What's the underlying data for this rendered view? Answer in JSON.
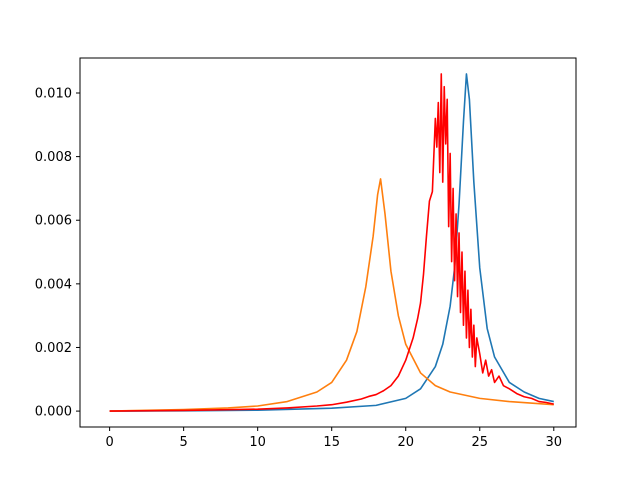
{
  "chart_data": {
    "type": "line",
    "title": "",
    "xlabel": "",
    "ylabel": "",
    "xlim": [
      -2,
      31.5
    ],
    "ylim": [
      -0.0005,
      0.0111
    ],
    "grid": false,
    "legend": "none",
    "x_ticks": [
      0,
      5,
      10,
      15,
      20,
      25,
      30
    ],
    "x_tick_labels": [
      "0",
      "5",
      "10",
      "15",
      "20",
      "25",
      "30"
    ],
    "y_ticks": [
      0.0,
      0.002,
      0.004,
      0.006,
      0.008,
      0.01
    ],
    "y_tick_labels": [
      "0.000",
      "0.002",
      "0.004",
      "0.006",
      "0.008",
      "0.010"
    ],
    "series": [
      {
        "color": "#1f77b4",
        "x": [
          0,
          5,
          10,
          15,
          18,
          20,
          21,
          22,
          22.5,
          23,
          23.3,
          23.6,
          23.9,
          24.1,
          24.3,
          24.6,
          25,
          25.5,
          26,
          27,
          28,
          29,
          30
        ],
        "y": [
          0.0,
          1e-05,
          3e-05,
          9e-05,
          0.00018,
          0.0004,
          0.0007,
          0.0014,
          0.0021,
          0.0033,
          0.0045,
          0.0065,
          0.0091,
          0.0106,
          0.0098,
          0.0072,
          0.0045,
          0.0026,
          0.0017,
          0.0009,
          0.0006,
          0.0004,
          0.0003
        ]
      },
      {
        "color": "#ff7f0e",
        "x": [
          0,
          5,
          8,
          10,
          12,
          14,
          15,
          16,
          16.7,
          17.3,
          17.8,
          18.1,
          18.3,
          18.6,
          19,
          19.5,
          20,
          21,
          22,
          23,
          25,
          27,
          30
        ],
        "y": [
          0.0,
          5e-05,
          0.0001,
          0.00016,
          0.0003,
          0.0006,
          0.0009,
          0.0016,
          0.0025,
          0.0039,
          0.0055,
          0.0068,
          0.0073,
          0.0062,
          0.0044,
          0.003,
          0.0021,
          0.0012,
          0.0008,
          0.0006,
          0.0004,
          0.0003,
          0.0002
        ]
      },
      {
        "color": "#ff0000",
        "x": [
          0,
          5,
          10,
          12,
          14,
          15,
          16,
          17,
          17.5,
          18,
          18.5,
          19,
          19.5,
          20,
          20.5,
          20.8,
          21,
          21.2,
          21.4,
          21.6,
          21.8,
          22.0,
          22.1,
          22.2,
          22.3,
          22.4,
          22.5,
          22.6,
          22.7,
          22.8,
          22.9,
          23.0,
          23.1,
          23.2,
          23.3,
          23.4,
          23.5,
          23.6,
          23.7,
          23.8,
          23.9,
          24.0,
          24.1,
          24.2,
          24.3,
          24.4,
          24.5,
          24.6,
          24.7,
          24.8,
          25.0,
          25.2,
          25.4,
          25.6,
          25.8,
          26.0,
          26.3,
          26.6,
          27.0,
          27.5,
          28.0,
          28.5,
          29.0,
          29.5,
          30.0
        ],
        "y": [
          0.0,
          2e-05,
          6e-05,
          0.0001,
          0.00016,
          0.0002,
          0.00028,
          0.00038,
          0.00046,
          0.00052,
          0.00064,
          0.0008,
          0.0011,
          0.0016,
          0.0023,
          0.0029,
          0.0034,
          0.0043,
          0.0055,
          0.0066,
          0.0069,
          0.0092,
          0.0083,
          0.0097,
          0.0075,
          0.0106,
          0.0072,
          0.0102,
          0.0084,
          0.0098,
          0.0058,
          0.0081,
          0.0047,
          0.007,
          0.0041,
          0.0062,
          0.0036,
          0.0056,
          0.0031,
          0.005,
          0.0027,
          0.0044,
          0.0023,
          0.0038,
          0.002,
          0.0032,
          0.0017,
          0.0027,
          0.0014,
          0.0023,
          0.0018,
          0.0012,
          0.0016,
          0.0011,
          0.0013,
          0.0009,
          0.0011,
          0.0008,
          0.0007,
          0.00055,
          0.00045,
          0.0004,
          0.0003,
          0.00027,
          0.00022
        ]
      }
    ]
  }
}
